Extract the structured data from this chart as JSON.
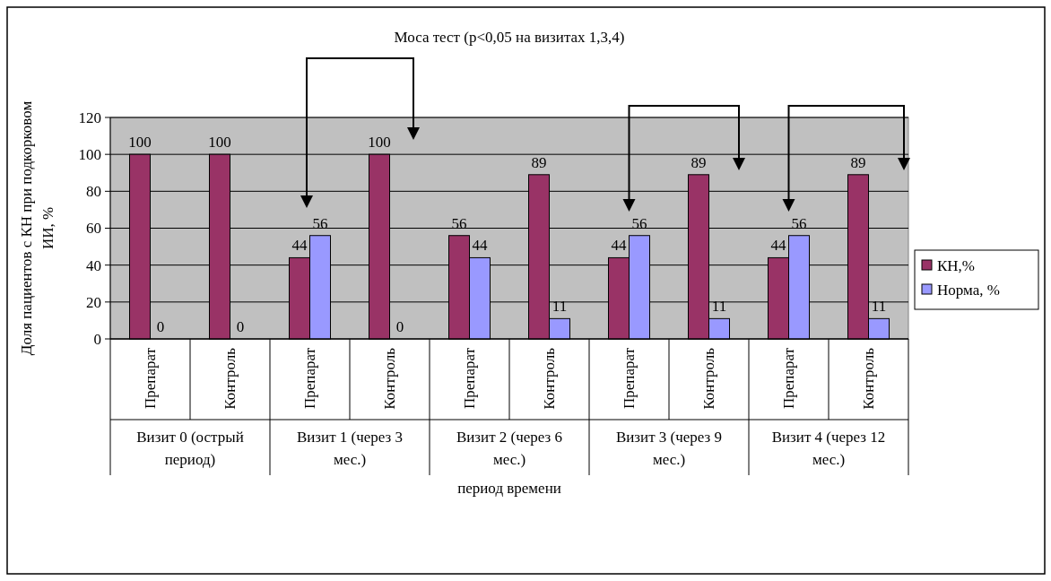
{
  "chart_data": {
    "type": "bar",
    "title": "Моса тест (p<0,05 на визитах 1,3,4)",
    "xlabel": "период времени",
    "ylabel": "Доля пациентов с КН при подкорковом ИИ, %",
    "categories": [
      "Препарат",
      "Контроль",
      "Препарат",
      "Контроль",
      "Препарат",
      "Контроль",
      "Препарат",
      "Контроль",
      "Препарат",
      "Контроль"
    ],
    "annotations": [
      "Визит 0 (острый период)",
      "Визит 1 (через 3 мес.)",
      "Визит 2 (через 6 мес.)",
      "Визит 3 (через 9 мес.)",
      "Визит 4 (через 12 мес.)"
    ],
    "series": [
      {
        "name": "КН,%",
        "color": "#993366",
        "values": [
          100,
          100,
          44,
          100,
          56,
          89,
          44,
          89,
          44,
          89
        ]
      },
      {
        "name": "Норма, %",
        "color": "#9999ff",
        "values": [
          0,
          0,
          56,
          0,
          44,
          11,
          56,
          11,
          56,
          11
        ]
      }
    ],
    "ylim": [
      0,
      120
    ],
    "yticks": [
      0,
      20,
      40,
      60,
      80,
      100,
      120
    ],
    "grid": "y",
    "legend": "right",
    "data_labels": true
  }
}
